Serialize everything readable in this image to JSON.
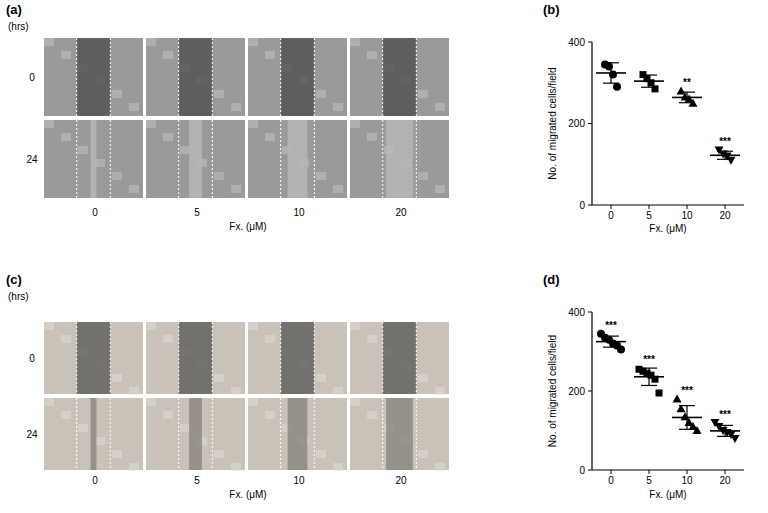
{
  "image_panels": [
    {
      "label": "(a)",
      "unit_label": "(hrs)",
      "rows": [
        "0",
        "24"
      ],
      "columns": [
        "0",
        "5",
        "10",
        "20"
      ],
      "xlabel": "Fx. (μM)"
    },
    {
      "label": "(c)",
      "unit_label": "(hrs)",
      "rows": [
        "0",
        "24"
      ],
      "columns": [
        "0",
        "5",
        "10",
        "20"
      ],
      "xlabel": "Fx. (μM)"
    }
  ],
  "chart_data": [
    {
      "type": "scatter",
      "title": "(b)",
      "xlabel": "Fx. (μM)",
      "ylabel": "No. of migrated cells/field",
      "categories": [
        "0",
        "5",
        "10",
        "20"
      ],
      "points": [
        [
          345,
          340,
          320,
          290
        ],
        [
          320,
          310,
          300,
          285
        ],
        [
          280,
          265,
          260,
          250
        ],
        [
          135,
          125,
          120,
          110
        ]
      ],
      "values": [
        324,
        304,
        264,
        122
      ],
      "error": [
        25,
        15,
        13,
        10
      ],
      "significance": [
        null,
        null,
        "**",
        "***"
      ],
      "ylim": [
        0,
        400
      ],
      "yticks": [
        0,
        200,
        400
      ]
    },
    {
      "type": "scatter",
      "title": "(d)",
      "xlabel": "Fx. (μM)",
      "ylabel": "No. of migrated cells/field",
      "categories": [
        "0",
        "5",
        "10",
        "20"
      ],
      "points": [
        [
          345,
          335,
          330,
          320,
          315,
          305
        ],
        [
          255,
          250,
          245,
          240,
          230,
          195
        ],
        [
          180,
          155,
          135,
          120,
          110,
          100
        ],
        [
          120,
          110,
          100,
          95,
          90,
          80
        ]
      ],
      "values": [
        325,
        236,
        133,
        99
      ],
      "error": [
        14,
        22,
        30,
        14
      ],
      "significance": [
        "***",
        "***",
        "***",
        "***"
      ],
      "ylim": [
        0,
        400
      ],
      "yticks": [
        0,
        200,
        400
      ]
    }
  ]
}
